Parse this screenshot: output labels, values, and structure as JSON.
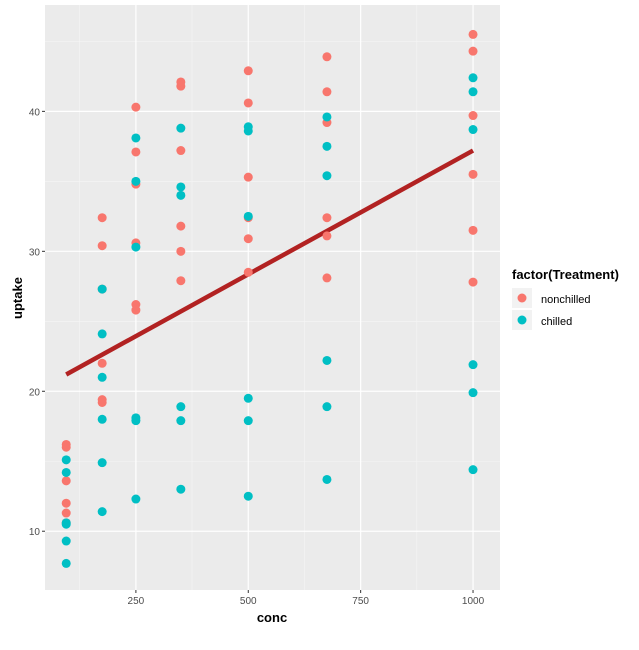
{
  "chart_data": {
    "type": "scatter",
    "xlabel": "conc",
    "ylabel": "uptake",
    "xlim": [
      47.8,
      1060
    ],
    "ylim": [
      5.8,
      47.6
    ],
    "x_ticks": [
      250,
      500,
      750,
      1000
    ],
    "y_ticks": [
      10,
      20,
      30,
      40
    ],
    "grid": true,
    "legend": {
      "title": "factor(Treatment)",
      "position": "right"
    },
    "series": [
      {
        "name": "nonchilled",
        "color": "#F8766D",
        "points": [
          [
            95,
            16.0
          ],
          [
            175,
            30.4
          ],
          [
            250,
            34.8
          ],
          [
            350,
            37.2
          ],
          [
            500,
            35.3
          ],
          [
            675,
            39.2
          ],
          [
            1000,
            39.7
          ],
          [
            95,
            13.6
          ],
          [
            175,
            27.3
          ],
          [
            250,
            37.1
          ],
          [
            350,
            41.8
          ],
          [
            500,
            40.6
          ],
          [
            675,
            41.4
          ],
          [
            1000,
            44.3
          ],
          [
            95,
            16.2
          ],
          [
            175,
            32.4
          ],
          [
            250,
            40.3
          ],
          [
            350,
            42.1
          ],
          [
            500,
            42.9
          ],
          [
            675,
            43.9
          ],
          [
            1000,
            45.5
          ],
          [
            95,
            10.6
          ],
          [
            175,
            19.2
          ],
          [
            250,
            26.2
          ],
          [
            350,
            30.0
          ],
          [
            500,
            30.9
          ],
          [
            675,
            32.4
          ],
          [
            1000,
            35.5
          ],
          [
            95,
            12.0
          ],
          [
            175,
            22.0
          ],
          [
            250,
            30.6
          ],
          [
            350,
            31.8
          ],
          [
            500,
            32.4
          ],
          [
            675,
            31.1
          ],
          [
            1000,
            31.5
          ],
          [
            95,
            11.3
          ],
          [
            175,
            19.4
          ],
          [
            250,
            25.8
          ],
          [
            350,
            27.9
          ],
          [
            500,
            28.5
          ],
          [
            675,
            28.1
          ],
          [
            1000,
            27.8
          ]
        ]
      },
      {
        "name": "chilled",
        "color": "#00BFC4",
        "points": [
          [
            95,
            14.2
          ],
          [
            175,
            24.1
          ],
          [
            250,
            30.3
          ],
          [
            350,
            34.6
          ],
          [
            500,
            32.5
          ],
          [
            675,
            35.4
          ],
          [
            1000,
            38.7
          ],
          [
            95,
            9.3
          ],
          [
            175,
            27.3
          ],
          [
            250,
            35.0
          ],
          [
            350,
            38.8
          ],
          [
            500,
            38.6
          ],
          [
            675,
            37.5
          ],
          [
            1000,
            42.4
          ],
          [
            95,
            15.1
          ],
          [
            175,
            21.0
          ],
          [
            250,
            38.1
          ],
          [
            350,
            34.0
          ],
          [
            500,
            38.9
          ],
          [
            675,
            39.6
          ],
          [
            1000,
            41.4
          ],
          [
            95,
            10.5
          ],
          [
            175,
            14.9
          ],
          [
            250,
            18.1
          ],
          [
            350,
            18.9
          ],
          [
            500,
            19.5
          ],
          [
            675,
            22.2
          ],
          [
            1000,
            21.9
          ],
          [
            95,
            7.7
          ],
          [
            175,
            11.4
          ],
          [
            250,
            12.3
          ],
          [
            350,
            13.0
          ],
          [
            500,
            12.5
          ],
          [
            675,
            13.7
          ],
          [
            1000,
            14.4
          ],
          [
            95,
            10.6
          ],
          [
            175,
            18.0
          ],
          [
            250,
            17.9
          ],
          [
            350,
            17.9
          ],
          [
            500,
            17.9
          ],
          [
            675,
            18.9
          ],
          [
            1000,
            19.9
          ]
        ]
      }
    ],
    "fit_line": {
      "color": "#B22222",
      "from": [
        95,
        21.2
      ],
      "to": [
        1000,
        37.2
      ]
    }
  }
}
